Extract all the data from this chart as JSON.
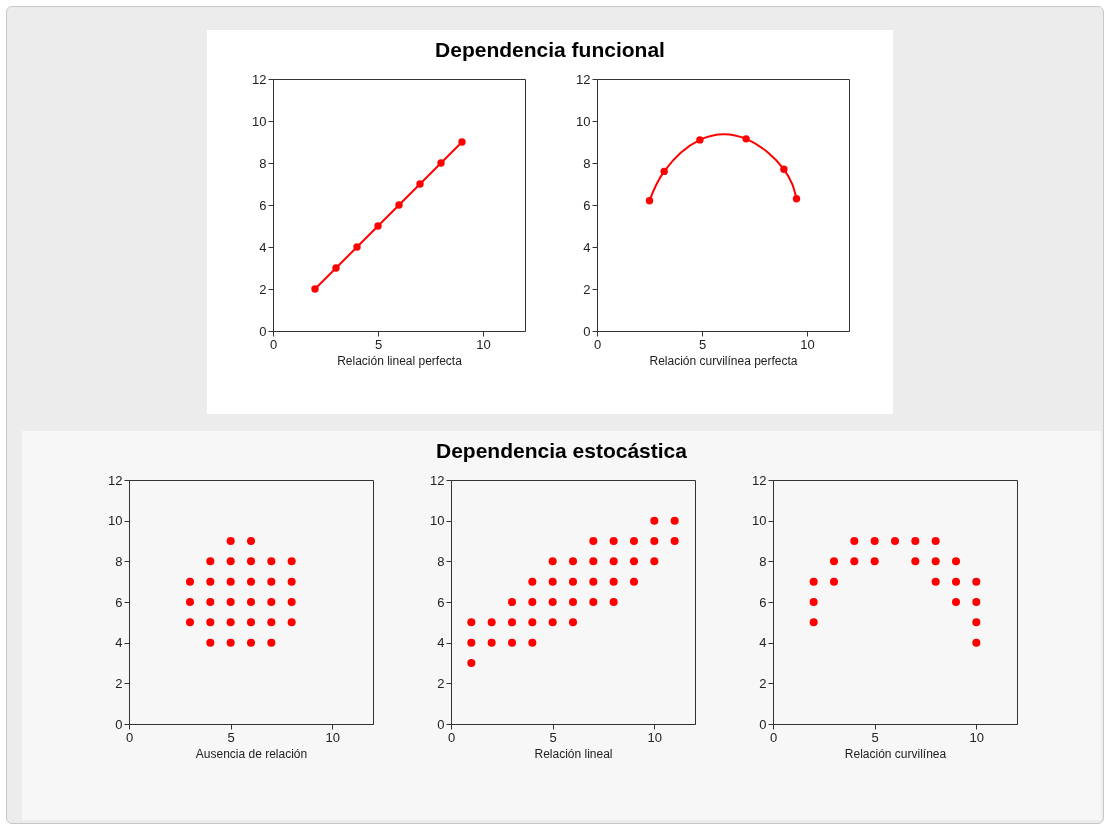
{
  "chart_data": [
    {
      "type": "line",
      "title": "Dependencia funcional",
      "xlabel": "Relación lineal perfecta",
      "x": [
        2,
        3,
        4,
        5,
        6,
        7,
        8,
        9
      ],
      "values": [
        2,
        3,
        4,
        5,
        6,
        7,
        8,
        9
      ],
      "color": "#ff0000",
      "marker": "circle",
      "xlim": [
        0,
        12
      ],
      "ylim": [
        0,
        12
      ],
      "xticks": [
        0,
        5,
        10
      ],
      "yticks": [
        0,
        2,
        4,
        6,
        8,
        10,
        12
      ],
      "grid": false
    },
    {
      "type": "line",
      "xlabel": "Relación curvilínea perfecta",
      "x": [
        2.5,
        3.2,
        4.9,
        7.1,
        8.9,
        9.5
      ],
      "values": [
        6.2,
        7.6,
        9.1,
        9.15,
        7.7,
        6.3
      ],
      "color": "#ff0000",
      "marker": "circle",
      "xlim": [
        0,
        12
      ],
      "ylim": [
        0,
        12
      ],
      "xticks": [
        0,
        5,
        10
      ],
      "yticks": [
        0,
        2,
        4,
        6,
        8,
        10,
        12
      ],
      "grid": false
    },
    {
      "type": "scatter",
      "xlabel": "Ausencia de relación",
      "x": [
        3,
        3,
        3,
        4,
        4,
        4,
        4,
        4,
        5,
        5,
        5,
        5,
        5,
        5,
        6,
        6,
        6,
        6,
        6,
        6,
        7,
        7,
        7,
        7,
        7,
        8,
        8,
        8,
        8
      ],
      "values": [
        5,
        6,
        7,
        4,
        5,
        6,
        7,
        8,
        4,
        5,
        6,
        7,
        8,
        9,
        4,
        5,
        6,
        7,
        8,
        9,
        4,
        5,
        6,
        7,
        8,
        5,
        6,
        7,
        8
      ],
      "color": "#ff0000",
      "marker": "circle",
      "xlim": [
        0,
        12
      ],
      "ylim": [
        0,
        12
      ],
      "xticks": [
        0,
        5,
        10
      ],
      "yticks": [
        0,
        2,
        4,
        6,
        8,
        10,
        12
      ],
      "grid": false
    },
    {
      "type": "scatter",
      "title": "Dependencia estocástica",
      "xlabel": "Relación lineal",
      "x": [
        1,
        1,
        1,
        2,
        2,
        3,
        3,
        3,
        4,
        4,
        4,
        4,
        5,
        5,
        5,
        5,
        6,
        6,
        6,
        6,
        7,
        7,
        7,
        7,
        8,
        8,
        8,
        8,
        9,
        9,
        9,
        10,
        10,
        10,
        11,
        11
      ],
      "values": [
        3,
        4,
        5,
        4,
        5,
        4,
        5,
        6,
        4,
        5,
        6,
        7,
        5,
        6,
        7,
        8,
        5,
        6,
        7,
        8,
        6,
        7,
        8,
        9,
        6,
        7,
        8,
        9,
        7,
        8,
        9,
        8,
        9,
        10,
        9,
        10
      ],
      "color": "#ff0000",
      "marker": "circle",
      "xlim": [
        0,
        12
      ],
      "ylim": [
        0,
        12
      ],
      "xticks": [
        0,
        5,
        10
      ],
      "yticks": [
        0,
        2,
        4,
        6,
        8,
        10,
        12
      ],
      "grid": false
    },
    {
      "type": "scatter",
      "xlabel": "Relación curvilínea",
      "x": [
        2,
        2,
        2,
        3,
        3,
        4,
        4,
        5,
        5,
        6,
        7,
        7,
        8,
        8,
        8,
        9,
        9,
        9,
        10,
        10,
        10,
        10
      ],
      "values": [
        5,
        6,
        7,
        7,
        8,
        8,
        9,
        8,
        9,
        9,
        8,
        9,
        7,
        8,
        9,
        6,
        7,
        8,
        4,
        5,
        6,
        7
      ],
      "color": "#ff0000",
      "marker": "circle",
      "xlim": [
        0,
        12
      ],
      "ylim": [
        0,
        12
      ],
      "xticks": [
        0,
        5,
        10
      ],
      "yticks": [
        0,
        2,
        4,
        6,
        8,
        10,
        12
      ],
      "grid": false
    }
  ]
}
